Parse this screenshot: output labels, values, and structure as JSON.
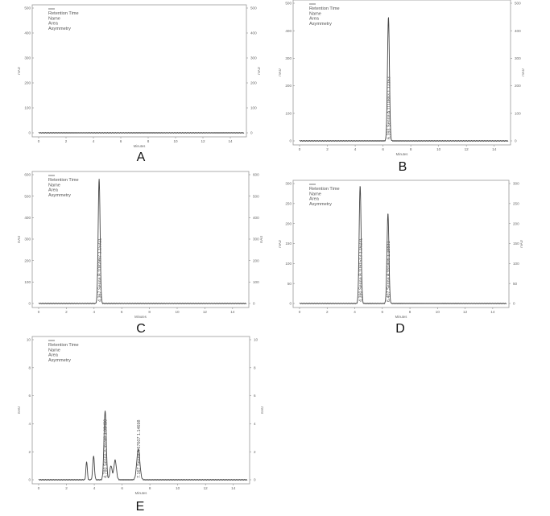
{
  "chart_data": [
    {
      "type": "line",
      "panel_label": "A",
      "xlabel": "Minutes",
      "ylabel": "mAU",
      "xlim": [
        0,
        15
      ],
      "ylim": [
        0,
        500
      ],
      "x_ticks": [
        0,
        2,
        4,
        6,
        8,
        10,
        12,
        14
      ],
      "y_ticks": [
        0,
        100,
        200,
        300,
        400,
        500
      ],
      "legend": [
        "Retention Time",
        "Name",
        "Area",
        "Asymmetry"
      ],
      "peaks": []
    },
    {
      "type": "line",
      "panel_label": "B",
      "xlabel": "Minutes",
      "ylabel": "mAU",
      "xlim": [
        0,
        15
      ],
      "ylim": [
        0,
        500
      ],
      "x_ticks": [
        0,
        2,
        4,
        6,
        8,
        10,
        12,
        14
      ],
      "y_ticks": [
        0,
        100,
        200,
        300,
        400,
        500
      ],
      "legend": [
        "Retention Time",
        "Name",
        "Area",
        "Asymmetry"
      ],
      "peaks": [
        {
          "x": 6.393,
          "y": 450,
          "width": 0.07,
          "label": "6.393  Senna A  1110883  1.12163"
        }
      ]
    },
    {
      "type": "line",
      "panel_label": "C",
      "xlabel": "Minutes",
      "ylabel": "mAU",
      "xlim": [
        0,
        15
      ],
      "ylim": [
        0,
        600
      ],
      "x_ticks": [
        0,
        2,
        4,
        6,
        8,
        10,
        12,
        14
      ],
      "y_ticks": [
        0,
        100,
        200,
        300,
        400,
        500,
        600
      ],
      "legend": [
        "Retention Time",
        "Name",
        "Area",
        "Asymmetry"
      ],
      "peaks": [
        {
          "x": 4.367,
          "y": 580,
          "width": 0.07,
          "label": "4.367  Senna B  1082997  1.15321"
        }
      ]
    },
    {
      "type": "line",
      "panel_label": "D",
      "xlabel": "Minutes",
      "ylabel": "mAU",
      "xlim": [
        0,
        15
      ],
      "ylim": [
        0,
        300
      ],
      "x_ticks": [
        0,
        2,
        4,
        6,
        8,
        10,
        12,
        14
      ],
      "y_ticks": [
        0,
        50,
        100,
        150,
        200,
        250,
        300
      ],
      "legend": [
        "Retention Time",
        "Name",
        "Area",
        "Asymmetry"
      ],
      "peaks": [
        {
          "x": 4.39,
          "y": 295,
          "width": 0.07,
          "label": "4.390  Senna B  1091513  1.16231"
        },
        {
          "x": 6.407,
          "y": 225,
          "width": 0.07,
          "label": "6.407  Senna A  991406  1.16531"
        }
      ]
    },
    {
      "type": "line",
      "panel_label": "E",
      "xlabel": "Minutes",
      "ylabel": "mAU",
      "xlim": [
        0,
        15
      ],
      "ylim": [
        0,
        10
      ],
      "x_ticks": [
        0,
        2,
        4,
        6,
        8,
        10,
        12,
        14
      ],
      "y_ticks": [
        0,
        2,
        4,
        6,
        8,
        10
      ],
      "legend": [
        "Retention Time",
        "Name",
        "Area",
        "Asymmetry"
      ],
      "peaks": [
        {
          "x": 3.45,
          "y": 1.3,
          "width": 0.05,
          "label": ""
        },
        {
          "x": 3.95,
          "y": 1.7,
          "width": 0.06,
          "label": ""
        },
        {
          "x": 4.78,
          "y": 4.9,
          "width": 0.08,
          "label": "4.780  Senna B  99248  1.05450"
        },
        {
          "x": 5.2,
          "y": 1.0,
          "width": 0.08,
          "label": ""
        },
        {
          "x": 5.5,
          "y": 1.4,
          "width": 0.09,
          "label": ""
        },
        {
          "x": 7.167,
          "y": 2.2,
          "width": 0.11,
          "label": "7.167  Senna A  67607  1.14698"
        }
      ]
    }
  ]
}
